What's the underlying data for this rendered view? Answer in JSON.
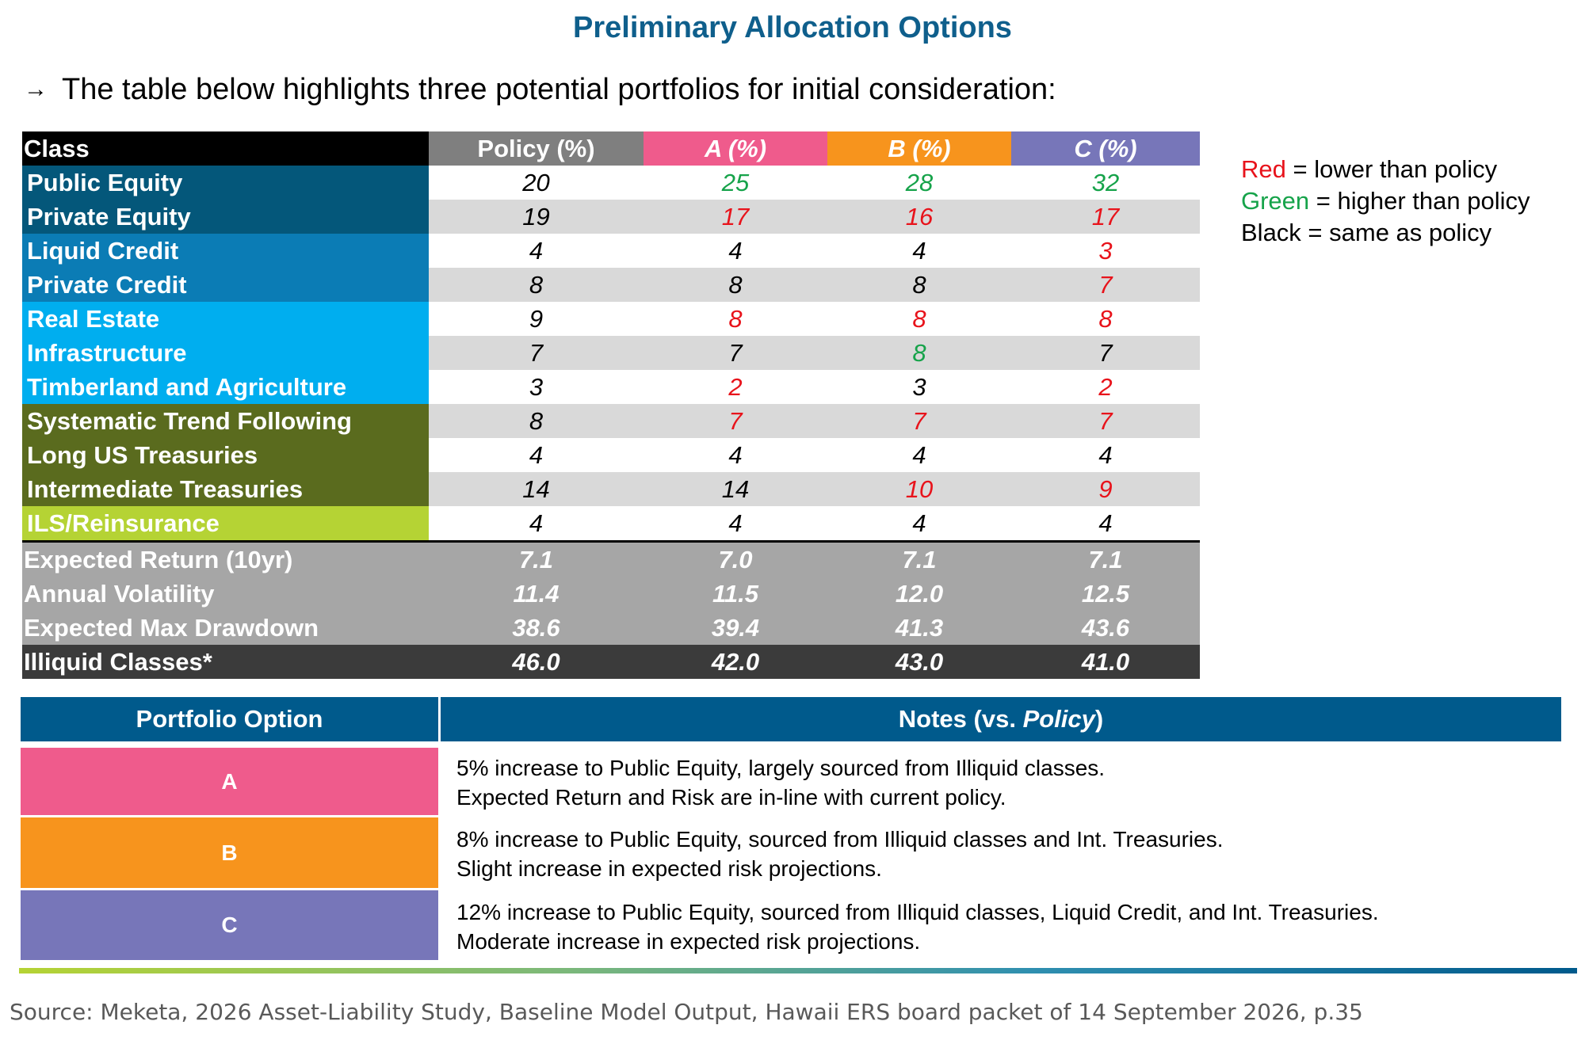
{
  "title": "Preliminary Allocation Options",
  "intro": "The table below highlights three potential portfolios for initial consideration:",
  "colors": {
    "title_blue": "#0f5f8c",
    "red": "#e8131b",
    "green": "#16a34a",
    "policy_header": "#7f7f7f",
    "a_pink": "#ef5b8c",
    "b_orange": "#f7941d",
    "c_purple": "#7776b9",
    "header_blue": "#005a8c"
  },
  "allocation_table": {
    "headers": [
      "Class",
      "Policy (%)",
      "A (%)",
      "B (%)",
      "C (%)"
    ],
    "rows": [
      {
        "class": "Public Equity",
        "bg": "#04577a",
        "cells": [
          {
            "v": "20",
            "c": "black"
          },
          {
            "v": "25",
            "c": "green"
          },
          {
            "v": "28",
            "c": "green"
          },
          {
            "v": "32",
            "c": "green"
          }
        ]
      },
      {
        "class": "Private Equity",
        "bg": "#04577a",
        "cells": [
          {
            "v": "19",
            "c": "black"
          },
          {
            "v": "17",
            "c": "red"
          },
          {
            "v": "16",
            "c": "red"
          },
          {
            "v": "17",
            "c": "red"
          }
        ]
      },
      {
        "class": "Liquid Credit",
        "bg": "#0b7cb5",
        "cells": [
          {
            "v": "4",
            "c": "black"
          },
          {
            "v": "4",
            "c": "black"
          },
          {
            "v": "4",
            "c": "black"
          },
          {
            "v": "3",
            "c": "red"
          }
        ]
      },
      {
        "class": "Private Credit",
        "bg": "#0b7cb5",
        "cells": [
          {
            "v": "8",
            "c": "black"
          },
          {
            "v": "8",
            "c": "black"
          },
          {
            "v": "8",
            "c": "black"
          },
          {
            "v": "7",
            "c": "red"
          }
        ]
      },
      {
        "class": "Real Estate",
        "bg": "#00aeef",
        "cells": [
          {
            "v": "9",
            "c": "black"
          },
          {
            "v": "8",
            "c": "red"
          },
          {
            "v": "8",
            "c": "red"
          },
          {
            "v": "8",
            "c": "red"
          }
        ]
      },
      {
        "class": "Infrastructure",
        "bg": "#00aeef",
        "cells": [
          {
            "v": "7",
            "c": "black"
          },
          {
            "v": "7",
            "c": "black"
          },
          {
            "v": "8",
            "c": "green"
          },
          {
            "v": "7",
            "c": "black"
          }
        ]
      },
      {
        "class": "Timberland and Agriculture",
        "bg": "#00aeef",
        "cells": [
          {
            "v": "3",
            "c": "black"
          },
          {
            "v": "2",
            "c": "red"
          },
          {
            "v": "3",
            "c": "black"
          },
          {
            "v": "2",
            "c": "red"
          }
        ]
      },
      {
        "class": "Systematic Trend Following",
        "bg": "#5a6b1e",
        "cells": [
          {
            "v": "8",
            "c": "black"
          },
          {
            "v": "7",
            "c": "red"
          },
          {
            "v": "7",
            "c": "red"
          },
          {
            "v": "7",
            "c": "red"
          }
        ]
      },
      {
        "class": "Long US Treasuries",
        "bg": "#5a6b1e",
        "cells": [
          {
            "v": "4",
            "c": "black"
          },
          {
            "v": "4",
            "c": "black"
          },
          {
            "v": "4",
            "c": "black"
          },
          {
            "v": "4",
            "c": "black"
          }
        ]
      },
      {
        "class": "Intermediate Treasuries",
        "bg": "#5a6b1e",
        "cells": [
          {
            "v": "14",
            "c": "black"
          },
          {
            "v": "14",
            "c": "black"
          },
          {
            "v": "10",
            "c": "red"
          },
          {
            "v": "9",
            "c": "red"
          }
        ]
      },
      {
        "class": "ILS/Reinsurance",
        "bg": "#b5d334",
        "cells": [
          {
            "v": "4",
            "c": "black"
          },
          {
            "v": "4",
            "c": "black"
          },
          {
            "v": "4",
            "c": "black"
          },
          {
            "v": "4",
            "c": "black"
          }
        ]
      }
    ],
    "metrics": [
      {
        "label": "Expected Return (10yr)",
        "values": [
          "7.1",
          "7.0",
          "7.1",
          "7.1"
        ]
      },
      {
        "label": "Annual Volatility",
        "values": [
          "11.4",
          "11.5",
          "12.0",
          "12.5"
        ]
      },
      {
        "label": "Expected Max Drawdown",
        "values": [
          "38.6",
          "39.4",
          "41.3",
          "43.6"
        ]
      }
    ],
    "illiquid": {
      "label": "Illiquid Classes*",
      "values": [
        "46.0",
        "42.0",
        "43.0",
        "41.0"
      ]
    }
  },
  "legend": {
    "red_word": "Red",
    "red_text": " = lower than policy",
    "green_word": "Green",
    "green_text": " = higher than policy",
    "black_text": "Black = same as policy"
  },
  "notes_table": {
    "header_option": "Portfolio Option",
    "header_notes_prefix": "Notes (vs. ",
    "header_notes_italic": "Policy",
    "header_notes_suffix": ")",
    "rows": [
      {
        "option": "A",
        "line1": "5% increase to Public Equity, largely sourced from Illiquid classes.",
        "line2": "Expected Return and Risk are in-line with current policy."
      },
      {
        "option": "B",
        "line1": "8% increase to Public Equity, sourced from Illiquid classes and Int. Treasuries.",
        "line2": "Slight increase in expected risk projections."
      },
      {
        "option": "C",
        "line1": "12% increase to Public Equity, sourced from Illiquid classes, Liquid Credit, and Int. Treasuries.",
        "line2": "Moderate increase in expected risk projections."
      }
    ]
  },
  "source": "Source: Meketa, 2026 Asset-Liability Study, Baseline Model Output, Hawaii ERS board packet of 14 September 2026, p.35"
}
